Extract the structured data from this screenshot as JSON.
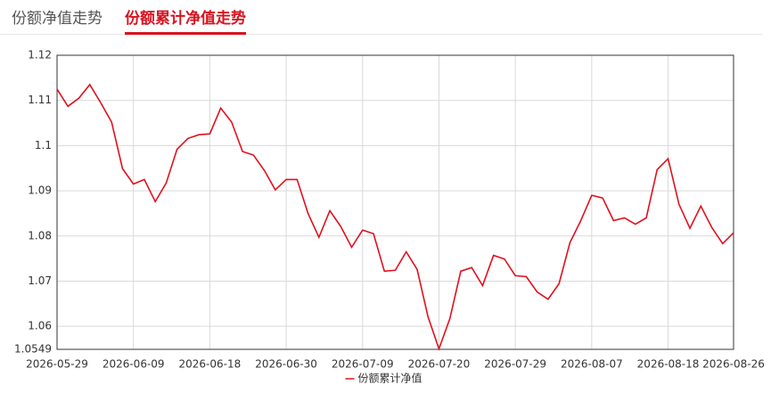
{
  "tabs": [
    "份额净值走势",
    "份额累计净值走势"
  ],
  "chart_data": {
    "type": "line",
    "categories": [
      "2026-05-29",
      null,
      null,
      null,
      null,
      null,
      null,
      "2026-06-09",
      null,
      null,
      null,
      null,
      null,
      null,
      "2026-06-18",
      null,
      null,
      null,
      null,
      null,
      null,
      "2026-06-30",
      null,
      null,
      null,
      null,
      null,
      null,
      "2026-07-09",
      null,
      null,
      null,
      null,
      null,
      null,
      "2026-07-20",
      null,
      null,
      null,
      null,
      null,
      null,
      "2026-07-29",
      null,
      null,
      null,
      null,
      null,
      null,
      "2026-08-07",
      null,
      null,
      null,
      null,
      null,
      null,
      "2026-08-18",
      null,
      null,
      null,
      null,
      null,
      "2026-08-26"
    ],
    "series": [
      {
        "name": "份额累计净值",
        "color": "#e0101e",
        "values": [
          1.1125,
          1.1087,
          1.1105,
          1.1135,
          1.1095,
          1.1052,
          1.0949,
          1.0915,
          1.0925,
          1.0876,
          1.0917,
          1.0992,
          1.1016,
          1.1024,
          1.1026,
          1.1083,
          1.1052,
          1.0987,
          1.0979,
          1.0945,
          1.0902,
          1.0925,
          1.0925,
          1.085,
          1.0797,
          1.0856,
          1.0821,
          1.0775,
          1.0813,
          1.0805,
          1.0722,
          1.0724,
          1.0765,
          1.0726,
          1.0621,
          1.055,
          1.0617,
          1.0722,
          1.073,
          1.069,
          1.0757,
          1.0749,
          1.0712,
          1.071,
          1.0676,
          1.066,
          1.0694,
          1.0785,
          1.0834,
          1.089,
          1.0884,
          1.0834,
          1.084,
          1.0826,
          1.084,
          1.0947,
          1.0971,
          1.087,
          1.0817,
          1.0866,
          1.0819,
          1.0783,
          1.0807
        ]
      }
    ],
    "ylim": [
      1.0549,
      1.12
    ],
    "yticks": [
      1.12,
      1.11,
      1.1,
      1.09,
      1.08,
      1.07,
      1.06,
      1.0549
    ],
    "grid": true,
    "legend": "bottom"
  }
}
